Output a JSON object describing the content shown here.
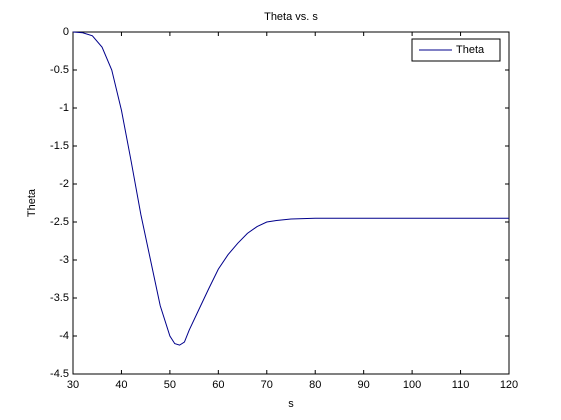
{
  "chart_data": {
    "type": "line",
    "title": "Theta vs. s",
    "xlabel": "s",
    "ylabel": "Theta",
    "x": [
      30,
      32,
      34,
      36,
      38,
      40,
      42,
      44,
      46,
      48,
      50,
      51,
      52,
      53,
      54,
      56,
      58,
      60,
      62,
      64,
      66,
      68,
      70,
      72,
      75,
      80,
      90,
      100,
      110,
      120
    ],
    "series": [
      {
        "name": "Theta",
        "color": "#00008b",
        "values": [
          0,
          -0.01,
          -0.05,
          -0.2,
          -0.5,
          -1.03,
          -1.7,
          -2.4,
          -3.0,
          -3.6,
          -4.0,
          -4.1,
          -4.12,
          -4.08,
          -3.92,
          -3.65,
          -3.38,
          -3.12,
          -2.93,
          -2.78,
          -2.65,
          -2.56,
          -2.5,
          -2.48,
          -2.46,
          -2.45,
          -2.45,
          -2.45,
          -2.45,
          -2.45
        ]
      }
    ],
    "xlim": [
      30,
      120
    ],
    "xticks": [
      30,
      40,
      50,
      60,
      70,
      80,
      90,
      100,
      110,
      120
    ],
    "ylim": [
      -4.5,
      0
    ],
    "yticks": [
      0,
      -0.5,
      -1,
      -1.5,
      -2,
      -2.5,
      -3,
      -3.5,
      -4,
      -4.5
    ],
    "legend": "upper right",
    "grid": false
  }
}
